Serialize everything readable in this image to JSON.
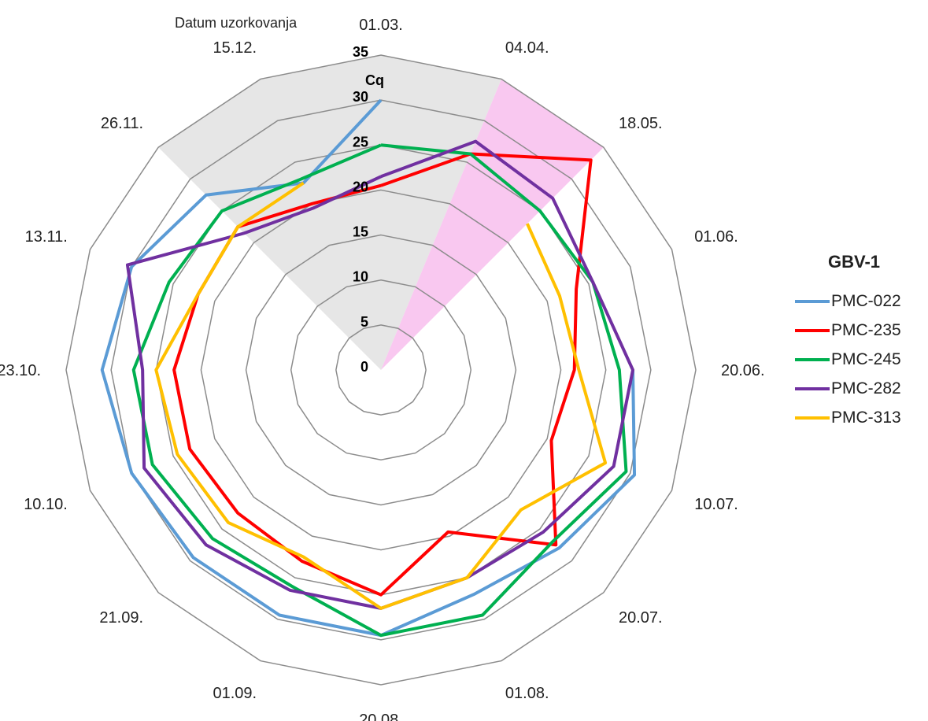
{
  "chart_data": {
    "type": "radar",
    "category_title": "Datum uzorkovanja",
    "axis_title": "Cq",
    "legend_title": "GBV-1",
    "categories": [
      "01.03.",
      "04.04.",
      "18.05.",
      "01.06.",
      "20.06.",
      "10.07.",
      "20.07.",
      "01.08.",
      "20.08.",
      "01.09.",
      "21.09.",
      "10.10.",
      "23.10.",
      "13.11.",
      "26.11.",
      "15.12."
    ],
    "rlim": [
      0,
      35
    ],
    "ticks": [
      "0",
      "5",
      "10",
      "15",
      "20",
      "25",
      "30",
      "35"
    ],
    "tick_values": [
      0,
      5,
      10,
      15,
      20,
      25,
      30,
      35
    ],
    "shaded_sectors": [
      {
        "color": "#e6e6e6",
        "from_index": 14,
        "to_index": 1
      },
      {
        "color": "#f9c8f0",
        "from_index": 1,
        "to_index": 2
      }
    ],
    "series": [
      {
        "name": "PMC-022",
        "color": "#5b9bd5",
        "values": [
          30,
          null,
          null,
          null,
          28,
          30.5,
          28,
          27,
          29.5,
          29.5,
          29.5,
          30,
          31,
          30,
          27.5,
          22.5
        ]
      },
      {
        "name": "PMC-235",
        "color": "#ff0000",
        "values": [
          20.5,
          26,
          33,
          23.5,
          21.5,
          20.5,
          27.5,
          19.5,
          25,
          23,
          22.5,
          23,
          23,
          22,
          22.5,
          20
        ]
      },
      {
        "name": "PMC-245",
        "color": "#00b050",
        "values": [
          25,
          26,
          25,
          25.5,
          26.5,
          29.5,
          27,
          29.5,
          29.5,
          26,
          26.5,
          27.5,
          27.5,
          25.5,
          25,
          23
        ]
      },
      {
        "name": "PMC-282",
        "color": "#7030a0",
        "values": [
          21.5,
          27.5,
          27,
          25.5,
          28,
          28,
          25.5,
          25,
          26.5,
          26.5,
          27.5,
          28.5,
          26.5,
          30.5,
          21.5,
          19.5
        ]
      },
      {
        "name": "PMC-313",
        "color": "#ffc000",
        "values": [
          null,
          null,
          23,
          21.5,
          22,
          27,
          22,
          25,
          26.5,
          22.5,
          24,
          24.5,
          25,
          22,
          22.5,
          22.5
        ]
      }
    ]
  }
}
